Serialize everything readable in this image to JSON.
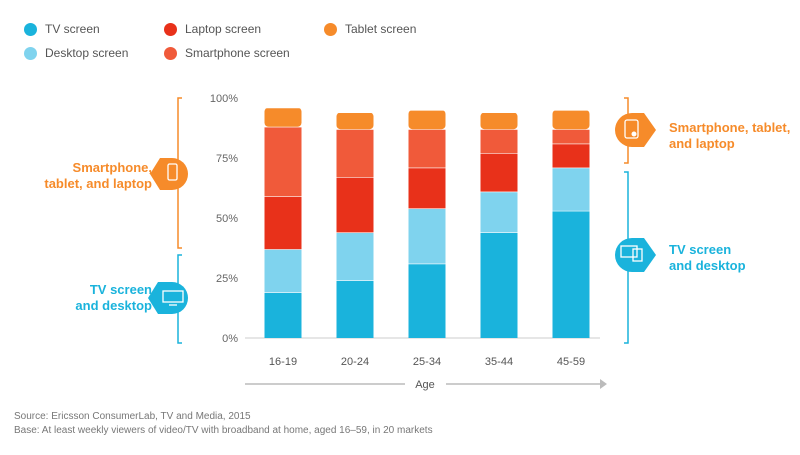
{
  "legend": [
    {
      "label": "TV screen",
      "color": "#1ab3dc"
    },
    {
      "label": "Laptop screen",
      "color": "#e8311a"
    },
    {
      "label": "Tablet screen",
      "color": "#f68b2a"
    },
    {
      "label": "Desktop screen",
      "color": "#7fd3ee"
    },
    {
      "label": "Smartphone screen",
      "color": "#f05a3a"
    }
  ],
  "chart_data": {
    "type": "bar",
    "stacked": true,
    "categories": [
      "16-19",
      "20-24",
      "25-34",
      "35-44",
      "45-59"
    ],
    "series": [
      {
        "name": "TV screen",
        "color": "#1ab3dc",
        "values": [
          19,
          24,
          31,
          44,
          53
        ]
      },
      {
        "name": "Desktop screen",
        "color": "#7fd3ee",
        "values": [
          18,
          20,
          23,
          17,
          18
        ]
      },
      {
        "name": "Laptop screen",
        "color": "#e8311a",
        "values": [
          22,
          23,
          17,
          16,
          10
        ]
      },
      {
        "name": "Smartphone screen",
        "color": "#f05a3a",
        "values": [
          29,
          20,
          16,
          10,
          6
        ]
      },
      {
        "name": "Tablet screen",
        "color": "#f68b2a",
        "values": [
          8,
          7,
          8,
          7,
          8
        ]
      }
    ],
    "ylim": [
      0,
      100
    ],
    "yticks": [
      "0%",
      "25%",
      "50%",
      "75%",
      "100%"
    ],
    "xlabel": "Age",
    "ylabel": ""
  },
  "annotations": {
    "left_top": {
      "line1": "Smartphone,",
      "line2": "tablet, and laptop",
      "color": "#f68b2a"
    },
    "left_bottom": {
      "line1": "TV screen",
      "line2": "and desktop",
      "color": "#1ab3dc"
    },
    "right_top": {
      "line1": "Smartphone, tablet,",
      "line2": "and laptop",
      "color": "#f68b2a"
    },
    "right_bottom": {
      "line1": "TV screen",
      "line2": "and desktop",
      "color": "#1ab3dc"
    }
  },
  "footer": {
    "source": "Source: Ericsson ConsumerLab, TV and Media, 2015",
    "base": "Base: At least weekly viewers of video/TV with broadband at home, aged 16–59, in 20 markets"
  }
}
